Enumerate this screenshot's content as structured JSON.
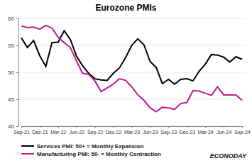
{
  "chart_data": {
    "type": "line",
    "title": "Eurozone PMIs",
    "categories": [
      "Sep-21",
      null,
      null,
      "Dec-21",
      null,
      null,
      "Mar-22",
      null,
      null,
      "Jun-22",
      null,
      null,
      "Sep-22",
      null,
      null,
      "Dec-22",
      null,
      null,
      "Mar-23",
      null,
      null,
      "Jun-23",
      null,
      null,
      "Sep-23",
      null,
      null,
      "Dec-23",
      null,
      null,
      "Mar-24",
      null,
      null,
      "Jun-24",
      null,
      null,
      "Sep-24"
    ],
    "series": [
      {
        "name": "Services PMI: 50+ = Monthly Expansion",
        "color": "#000000",
        "values": [
          56.4,
          54.6,
          55.9,
          53.1,
          51.1,
          55.5,
          55.6,
          57.7,
          56.1,
          53.0,
          51.2,
          49.8,
          48.8,
          48.6,
          48.5,
          49.8,
          50.8,
          52.7,
          55.0,
          56.2,
          55.1,
          52.0,
          50.9,
          47.9,
          48.7,
          47.8,
          48.7,
          48.8,
          48.4,
          50.2,
          51.5,
          53.3,
          53.2,
          52.8,
          51.9,
          52.9,
          52.4
        ]
      },
      {
        "name": "Manufacturing PMI: 50- = Monthly Contraction",
        "color": "#c2188c",
        "values": [
          58.6,
          58.3,
          58.4,
          58.0,
          58.7,
          58.2,
          56.5,
          55.5,
          54.6,
          52.1,
          49.8,
          49.6,
          48.4,
          46.4,
          47.1,
          47.8,
          48.8,
          48.5,
          47.3,
          45.8,
          44.8,
          43.4,
          42.7,
          43.5,
          43.4,
          43.1,
          44.2,
          44.4,
          46.6,
          46.5,
          46.1,
          45.7,
          47.3,
          45.8,
          45.8,
          45.8,
          44.8
        ]
      }
    ],
    "ylim": [
      40,
      60
    ],
    "yticks": [
      40,
      45,
      50,
      55,
      60
    ],
    "grid": true,
    "legend": "bottom",
    "annotations": [
      "ECONODAY"
    ]
  }
}
